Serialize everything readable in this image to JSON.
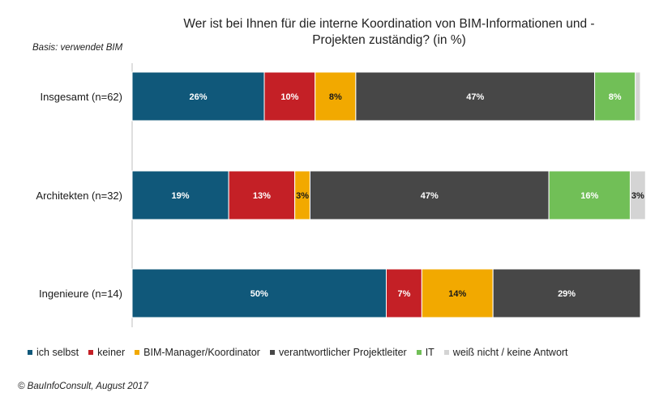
{
  "chart_data": {
    "type": "bar",
    "orientation": "horizontal",
    "stacked": true,
    "title": "Wer ist bei Ihnen für die interne Koordination von BIM-Informationen und - Projekten zuständig? (in %)",
    "title_lines": [
      "Wer ist bei Ihnen für die interne Koordination von BIM-Informationen und -",
      "Projekten zuständig? (in %)"
    ],
    "note": "Basis: verwendet BIM",
    "source": "© BauInfoConsult, August 2017",
    "categories": [
      "Insgesamt (n=62)",
      "Architekten (n=32)",
      "Ingenieure (n=14)"
    ],
    "series": [
      {
        "name": "ich selbst",
        "color": "#10587a",
        "values": [
          26,
          19,
          50
        ],
        "labels": [
          "26%",
          "19%",
          "50%"
        ]
      },
      {
        "name": "keiner",
        "color": "#c42026",
        "values": [
          10,
          13,
          7
        ],
        "labels": [
          "10%",
          "13%",
          "7%"
        ]
      },
      {
        "name": "BIM-Manager/Koordinator",
        "color": "#f2a900",
        "values": [
          8,
          3,
          14
        ],
        "labels": [
          "8%",
          "3%",
          "14%"
        ]
      },
      {
        "name": "verantwortlicher Projektleiter",
        "color": "#474747",
        "values": [
          47,
          47,
          29
        ],
        "labels": [
          "47%",
          "47%",
          "29%"
        ]
      },
      {
        "name": "IT",
        "color": "#71bf57",
        "values": [
          8,
          16,
          0
        ],
        "labels": [
          "8%",
          "16%",
          ""
        ]
      },
      {
        "name": "weiß nicht / keine Antwort",
        "color": "#d4d4d4",
        "values": [
          1,
          3,
          0
        ],
        "labels": [
          "",
          "3%",
          ""
        ]
      }
    ],
    "xlim": [
      0,
      100
    ],
    "legend_position": "bottom",
    "grid": false
  }
}
